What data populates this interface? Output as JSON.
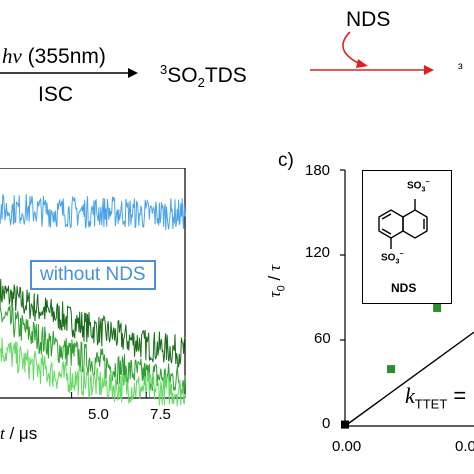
{
  "scheme": {
    "excitation_label": "hν (355nm)",
    "isc_label": "ISC",
    "product_label": "³SO₂TDS",
    "quencher_label": "NDS",
    "truncated_product": "³",
    "colors": {
      "arrow": "#000000",
      "quench_arrow": "#e02020"
    }
  },
  "panel_b": {
    "legend_label": "without NDS",
    "x_axis_label": "t / μs",
    "x_ticks": [
      "5.0",
      "7.5"
    ],
    "colors": {
      "without_nds": "#4aa3e8",
      "series_dark": "#1a6b1a",
      "series_mid": "#2e9e2e",
      "series_light": "#66d966"
    }
  },
  "panel_c": {
    "panel_label": "c)",
    "y_axis_label": "τ0 / τ",
    "y_ticks": [
      "0",
      "60",
      "120",
      "180"
    ],
    "x_ticks": [
      "0.00",
      "0.0"
    ],
    "inset": {
      "top_group": "SO3−",
      "bottom_group": "SO3−",
      "compound_label": "NDS"
    },
    "annotation": "kTTET =",
    "colors": {
      "points": "#2e8b2e",
      "origin_point": "#000000",
      "fit_line": "#000000"
    }
  },
  "chart_data": [
    {
      "type": "line",
      "title": "",
      "xlabel": "t / μs",
      "ylabel": "",
      "xlim": [
        2.6,
        8.8
      ],
      "x_ticks": [
        5.0,
        7.5
      ],
      "series": [
        {
          "name": "without NDS",
          "x": [
            2.6,
            3.5,
            4.5,
            5.5,
            6.5,
            7.5,
            8.8
          ],
          "values": [
            0.82,
            0.82,
            0.81,
            0.81,
            0.81,
            0.8,
            0.8
          ]
        },
        {
          "x": [
            2.6,
            3.5,
            4.5,
            5.5,
            6.5,
            7.5,
            8.8
          ],
          "values": [
            0.46,
            0.41,
            0.36,
            0.31,
            0.27,
            0.23,
            0.2
          ]
        },
        {
          "x": [
            2.6,
            3.5,
            4.5,
            5.5,
            6.5,
            7.5,
            8.8
          ],
          "values": [
            0.36,
            0.29,
            0.22,
            0.17,
            0.13,
            0.1,
            0.08
          ]
        },
        {
          "x": [
            2.6,
            3.5,
            4.5,
            5.5,
            6.5,
            7.5,
            8.8
          ],
          "values": [
            0.22,
            0.15,
            0.1,
            0.07,
            0.05,
            0.04,
            0.03
          ]
        }
      ]
    },
    {
      "type": "scatter",
      "title": "",
      "xlabel": "",
      "ylabel": "τ0 / τ",
      "ylim": [
        0,
        180
      ],
      "xlim": [
        0,
        0.007
      ],
      "y_ticks": [
        0,
        60,
        120,
        180
      ],
      "points": [
        {
          "x": 0.0,
          "y": 1
        },
        {
          "x": 0.0025,
          "y": 40
        },
        {
          "x": 0.005,
          "y": 83
        }
      ],
      "fit_line": {
        "x": [
          0.0,
          0.007
        ],
        "y": [
          0,
          66
        ]
      }
    }
  ]
}
